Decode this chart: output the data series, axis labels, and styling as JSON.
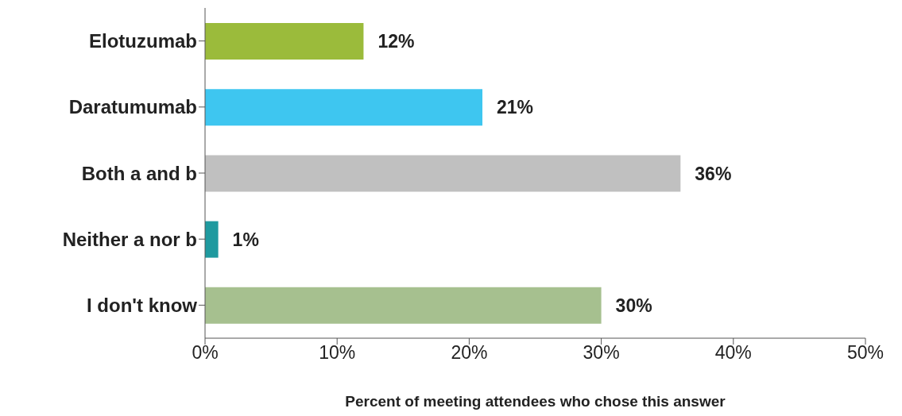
{
  "chart_data": {
    "type": "bar",
    "orientation": "horizontal",
    "xlabel": "Percent of meeting attendees who chose this answer",
    "categories": [
      "Elotuzumab",
      "Daratumumab",
      "Both a and b",
      "Neither a nor b",
      "I don't know"
    ],
    "values": [
      12,
      21,
      36,
      1,
      30
    ],
    "colors": [
      "#9bbb3b",
      "#3ec6f0",
      "#c0c0c0",
      "#1f9a9f",
      "#a6c08f"
    ],
    "value_labels": [
      "12%",
      "21%",
      "36%",
      "1%",
      "30%"
    ],
    "xlim": [
      0,
      50
    ],
    "xticks": [
      {
        "value": 0,
        "label": "0%"
      },
      {
        "value": 10,
        "label": "10%"
      },
      {
        "value": 20,
        "label": "20%"
      },
      {
        "value": 30,
        "label": "30%"
      },
      {
        "value": 40,
        "label": "40%"
      },
      {
        "value": 50,
        "label": "50%"
      }
    ],
    "grid": false,
    "legend": false
  }
}
